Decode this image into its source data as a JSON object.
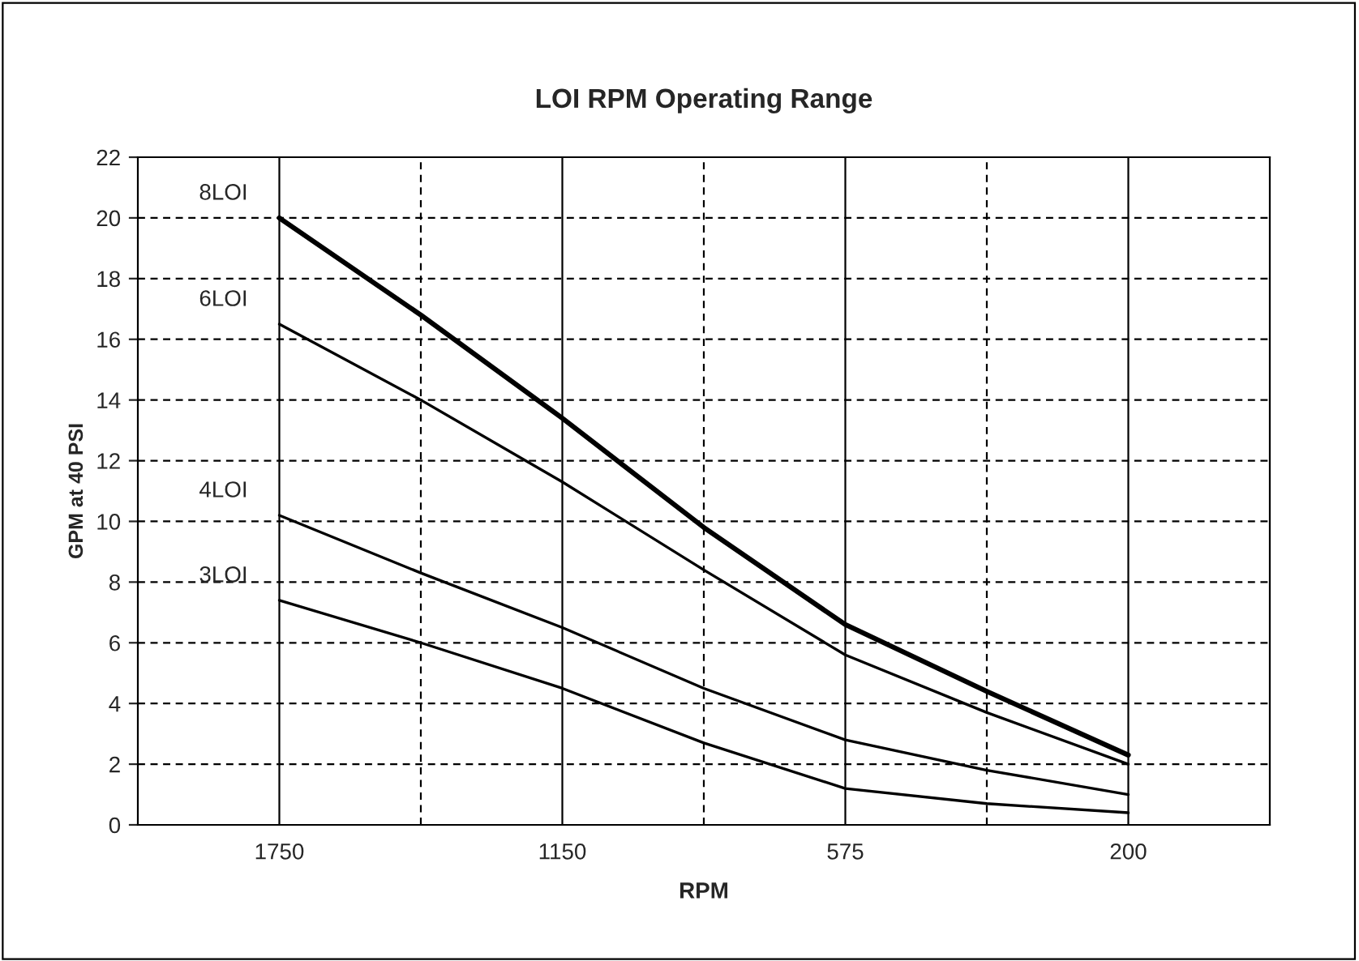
{
  "chart_data": {
    "type": "line",
    "title": "LOI RPM Operating Range",
    "xlabel": "RPM",
    "ylabel": "GPM at 40 PSI",
    "categories": [
      "1750",
      null,
      "1150",
      null,
      "575",
      null,
      "200"
    ],
    "series": [
      {
        "name": "8LOI",
        "color": "#000000",
        "values": [
          20.0,
          16.8,
          13.4,
          9.8,
          6.6,
          4.4,
          2.3
        ]
      },
      {
        "name": "6LOI",
        "color": "#000000",
        "values": [
          16.5,
          14.0,
          11.3,
          8.4,
          5.6,
          3.7,
          2.0
        ]
      },
      {
        "name": "4LOI",
        "color": "#000000",
        "values": [
          10.2,
          8.3,
          6.5,
          4.5,
          2.8,
          1.8,
          1.0
        ]
      },
      {
        "name": "3LOI",
        "color": "#000000",
        "values": [
          7.4,
          6.0,
          4.5,
          2.7,
          1.2,
          0.7,
          0.4
        ]
      }
    ],
    "ylim": [
      0,
      22
    ],
    "yticks": [
      0,
      2,
      4,
      6,
      8,
      10,
      12,
      14,
      16,
      18,
      20,
      22
    ],
    "grid": true,
    "legend": false,
    "marker": "none",
    "line_style": "solid"
  }
}
